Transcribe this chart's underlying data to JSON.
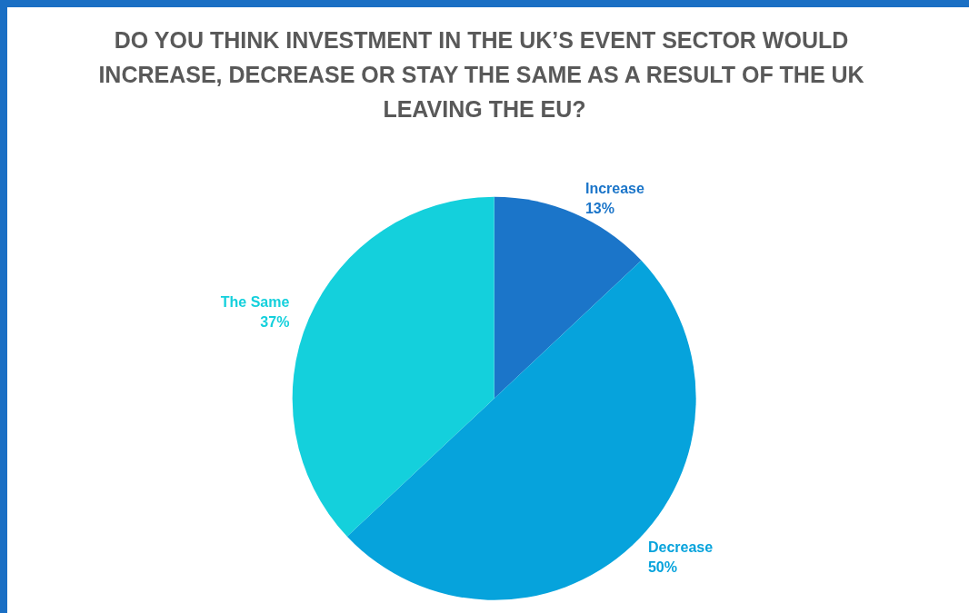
{
  "chart_data": {
    "type": "pie",
    "title": "DO YOU THINK INVESTMENT IN THE UK’S EVENT SECTOR WOULD INCREASE, DECREASE OR STAY THE SAME AS A RESULT OF THE UK LEAVING THE EU?",
    "categories": [
      "Increase",
      "Decrease",
      "The Same"
    ],
    "values": [
      13,
      50,
      37
    ],
    "value_labels": [
      "13%",
      "50%",
      "37%"
    ],
    "colors": [
      "#1b75c9",
      "#06a3dc",
      "#14d0dc"
    ],
    "legend": false
  }
}
